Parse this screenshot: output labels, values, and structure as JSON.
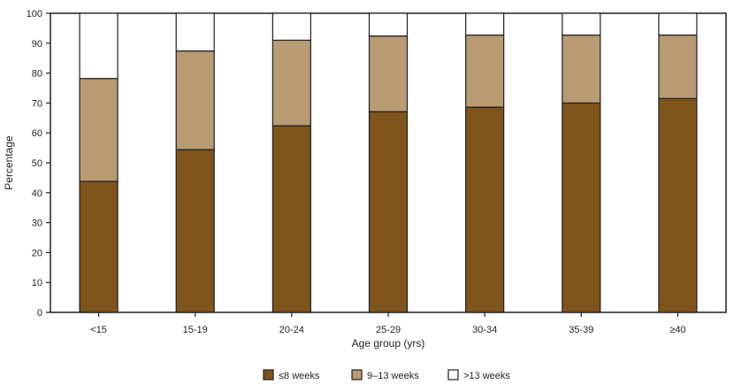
{
  "chart_data": {
    "type": "bar",
    "stacked": true,
    "title": "",
    "xlabel": "Age group (yrs)",
    "ylabel": "Percentage",
    "ylim": [
      0,
      100
    ],
    "yticks": [
      0,
      10,
      20,
      30,
      40,
      50,
      60,
      70,
      80,
      90,
      100
    ],
    "grid": false,
    "legend_position": "bottom",
    "categories": [
      "<15",
      "15-19",
      "20-24",
      "25-29",
      "30-34",
      "35-39",
      "≥40"
    ],
    "series": [
      {
        "name": "≤8 weeks",
        "color": "#7f541b",
        "values": [
          43.8,
          54.4,
          62.4,
          67.1,
          68.6,
          70.0,
          71.5
        ]
      },
      {
        "name": "9–13 weeks",
        "color": "#b89a73",
        "values": [
          34.4,
          33.0,
          28.6,
          25.3,
          24.1,
          22.7,
          21.2
        ]
      },
      {
        "name": ">13 weeks",
        "color": "#ffffff",
        "values": [
          21.8,
          12.6,
          9.0,
          7.6,
          7.3,
          7.3,
          7.3
        ]
      }
    ]
  }
}
